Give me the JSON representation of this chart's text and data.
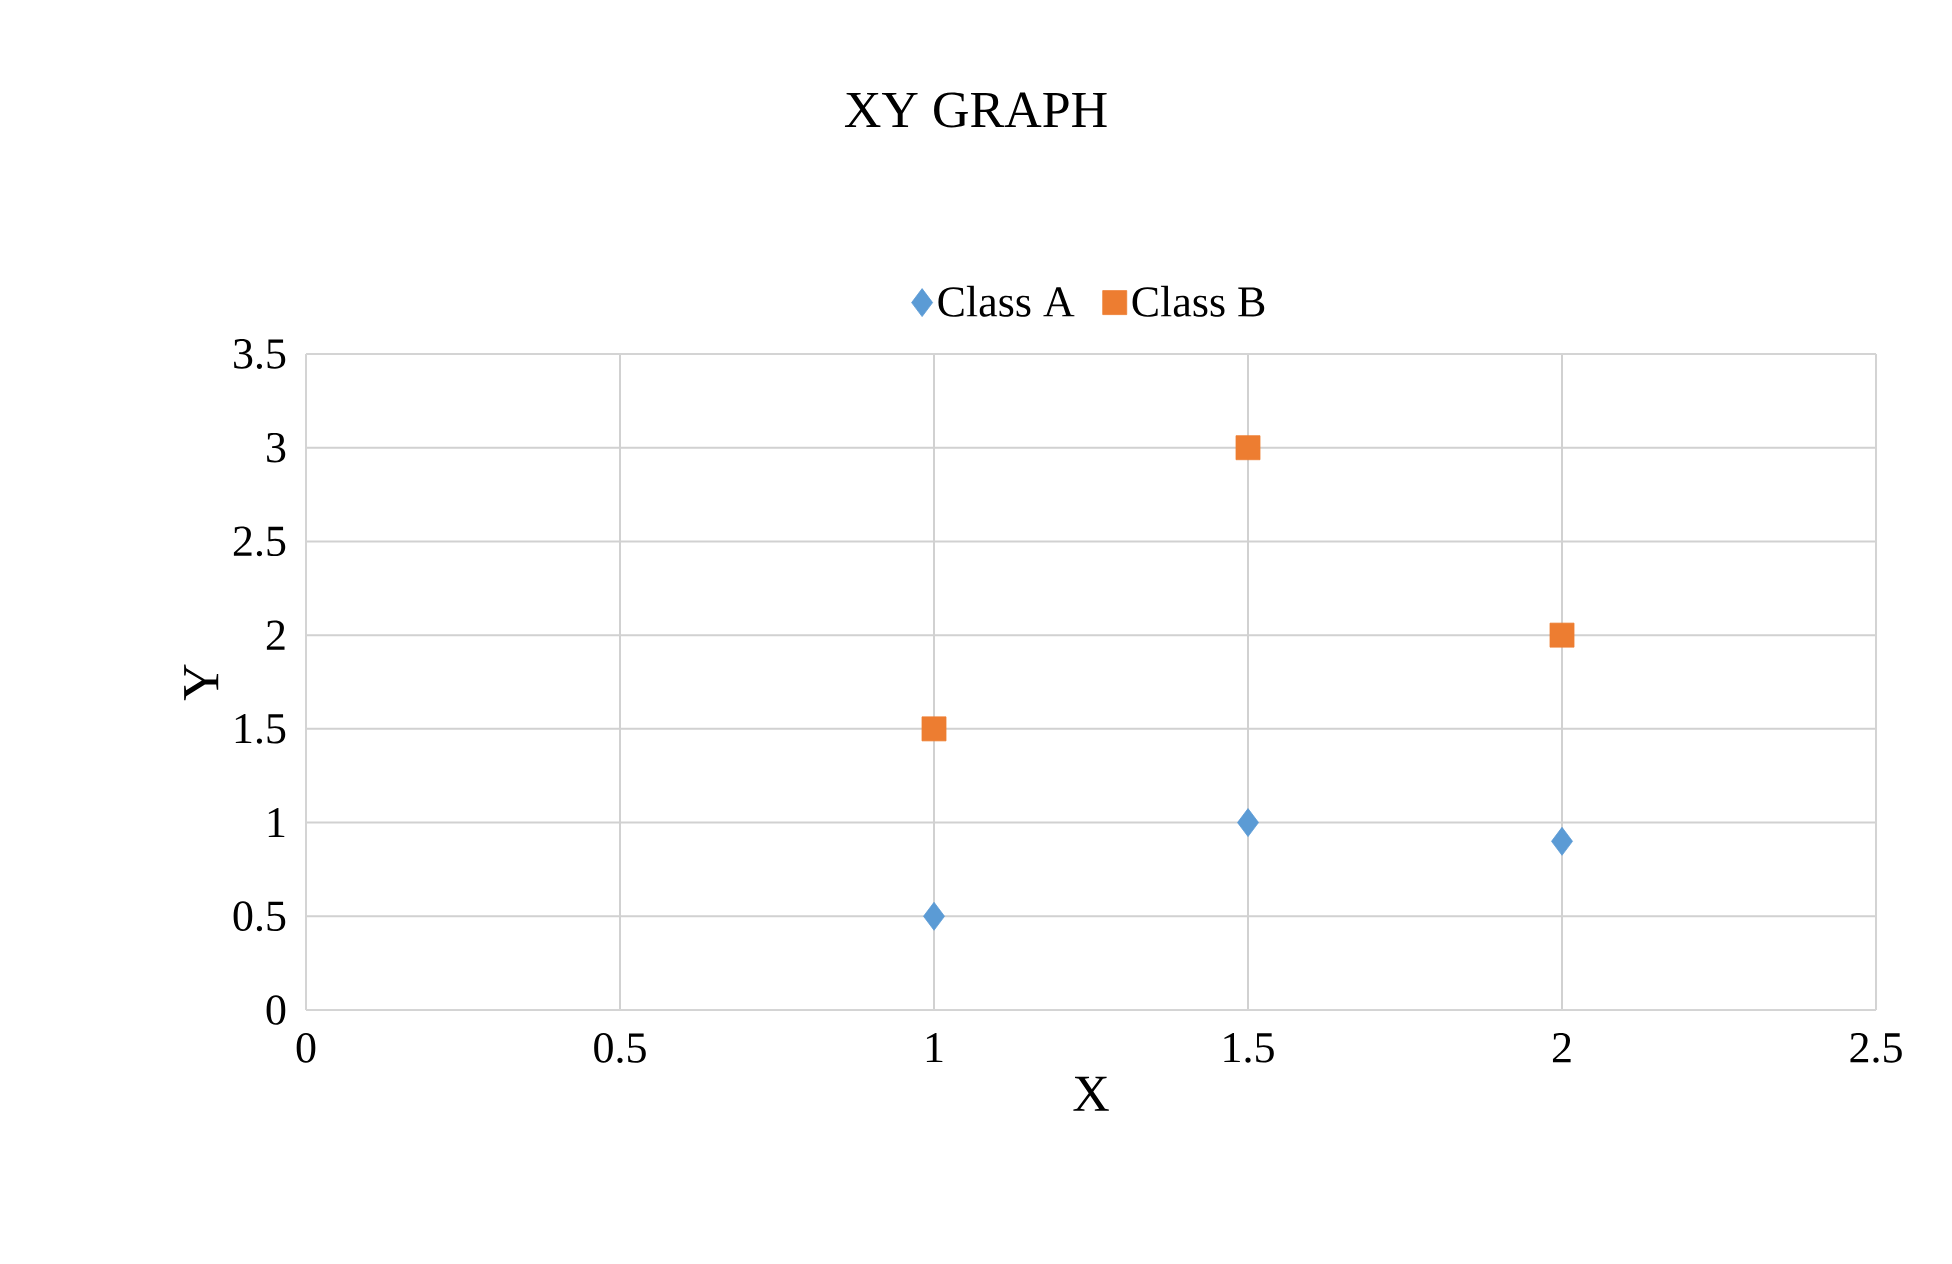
{
  "chart_data": {
    "type": "scatter",
    "title": "XY GRAPH",
    "xlabel": "X",
    "ylabel": "Y",
    "xlim": [
      0,
      2.5
    ],
    "xticks": [
      0,
      0.5,
      1,
      1.5,
      2,
      2.5
    ],
    "ylim": [
      0,
      3.5
    ],
    "yticks": [
      0,
      0.5,
      1,
      1.5,
      2,
      2.5,
      3,
      3.5
    ],
    "grid": true,
    "legend": "top",
    "series": [
      {
        "name": "Class A",
        "color": "#5b9bd5",
        "marker": "diamond",
        "x": [
          1,
          1.5,
          2
        ],
        "values": [
          0.5,
          1,
          0.9
        ]
      },
      {
        "name": "Class B",
        "color": "#ed7d31",
        "marker": "square",
        "x": [
          1,
          1.5,
          2
        ],
        "values": [
          1.5,
          3,
          2
        ]
      }
    ]
  }
}
